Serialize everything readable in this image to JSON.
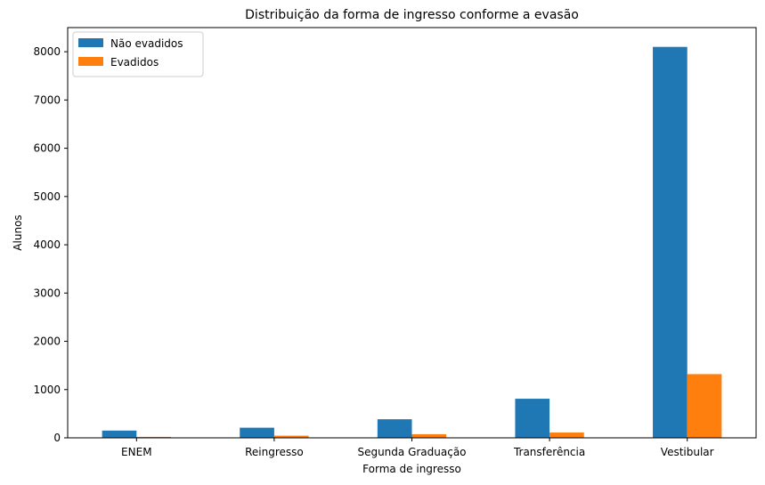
{
  "chart_data": {
    "type": "bar",
    "title": "Distribuição da forma de ingresso conforme a evasão",
    "xlabel": "Forma de ingresso",
    "ylabel": "Alunos",
    "categories": [
      "ENEM",
      "Reingresso",
      "Segunda Graduação",
      "Transferência",
      "Vestibular"
    ],
    "series": [
      {
        "name": "Não evadidos",
        "color": "#1f77b4",
        "values": [
          150,
          210,
          385,
          810,
          8100
        ]
      },
      {
        "name": "Evadidos",
        "color": "#ff7f0e",
        "values": [
          20,
          45,
          75,
          110,
          1320
        ]
      }
    ],
    "ylim": [
      0,
      8500
    ],
    "yticks": [
      "0",
      "1000",
      "2000",
      "3000",
      "4000",
      "5000",
      "6000",
      "7000",
      "8000"
    ],
    "legend": "top-left",
    "grid": false
  }
}
